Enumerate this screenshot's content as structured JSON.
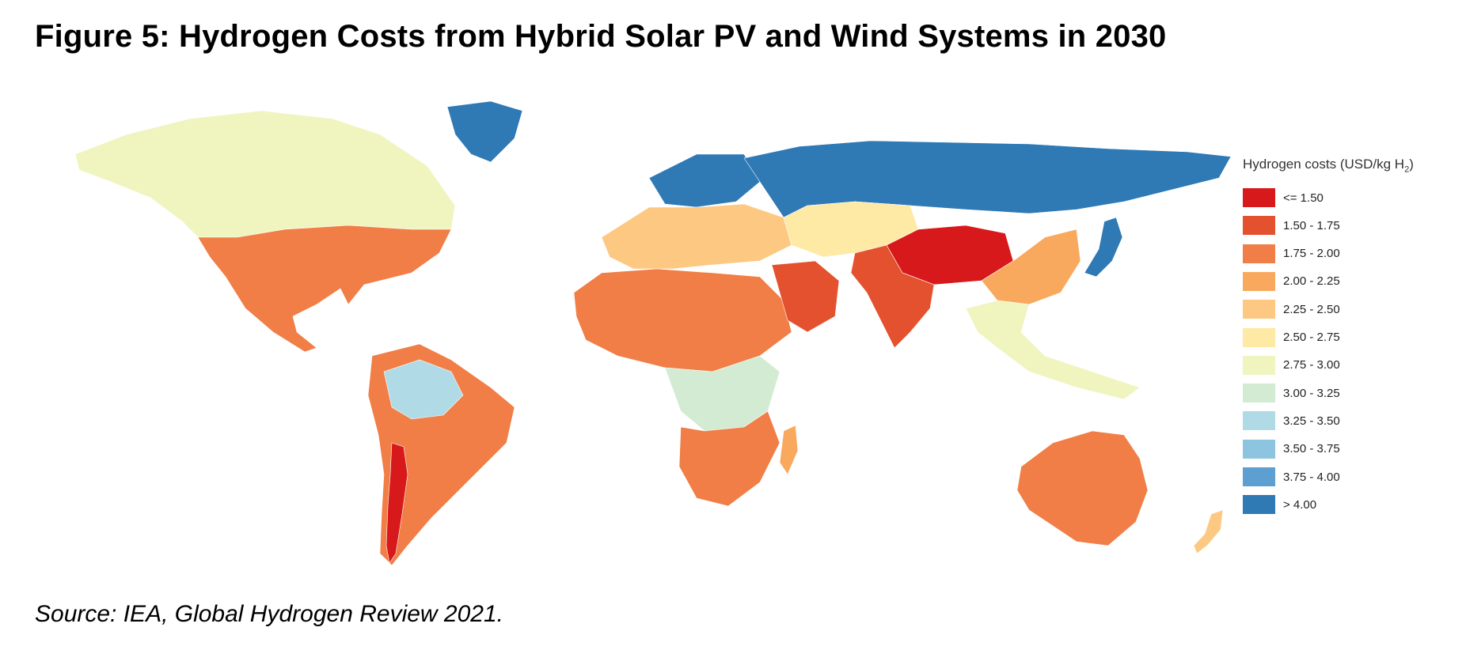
{
  "figure": {
    "title": "Figure 5: Hydrogen Costs from Hybrid Solar PV and Wind Systems in 2030",
    "source": "Source: IEA, Global Hydrogen Review 2021."
  },
  "legend": {
    "title_prefix": "Hydrogen costs (USD/kg H",
    "title_subscript": "2",
    "title_suffix": ")",
    "classes": [
      {
        "label": "<= 1.50",
        "color": "#d7191c"
      },
      {
        "label": "1.50 - 1.75",
        "color": "#e4512f"
      },
      {
        "label": "1.75 - 2.00",
        "color": "#f07e46"
      },
      {
        "label": "2.00 - 2.25",
        "color": "#f9a95e"
      },
      {
        "label": "2.25 - 2.50",
        "color": "#fdc982"
      },
      {
        "label": "2.50 - 2.75",
        "color": "#fee9a5"
      },
      {
        "label": "2.75 - 3.00",
        "color": "#f0f5c0"
      },
      {
        "label": "3.00 - 3.25",
        "color": "#d2ebd2"
      },
      {
        "label": "3.25 - 3.50",
        "color": "#b0dbe6"
      },
      {
        "label": "3.50 - 3.75",
        "color": "#8dc4e0"
      },
      {
        "label": "3.75 - 4.00",
        "color": "#5d9fd1"
      },
      {
        "label": "> 4.00",
        "color": "#2f79b5"
      }
    ]
  },
  "regions": [
    {
      "name": "North America (Canada/Alaska)",
      "cost_class": "2.75 - 3.00"
    },
    {
      "name": "United States & Mexico",
      "cost_class": "1.75 - 2.00"
    },
    {
      "name": "Greenland",
      "cost_class": "> 4.00"
    },
    {
      "name": "Andes / Chile",
      "cost_class": "<= 1.50"
    },
    {
      "name": "Amazon Basin",
      "cost_class": "3.25 - 3.50"
    },
    {
      "name": "South America (east)",
      "cost_class": "1.75 - 2.00"
    },
    {
      "name": "Northern Europe / Scandinavia",
      "cost_class": "> 4.00"
    },
    {
      "name": "Southern Europe",
      "cost_class": "2.25 - 2.50"
    },
    {
      "name": "Sahara / North Africa",
      "cost_class": "1.75 - 2.00"
    },
    {
      "name": "Central Africa",
      "cost_class": "3.00 - 3.25"
    },
    {
      "name": "Southern Africa",
      "cost_class": "1.75 - 2.00"
    },
    {
      "name": "Madagascar",
      "cost_class": "2.00 - 2.25"
    },
    {
      "name": "Arabian Peninsula",
      "cost_class": "1.50 - 1.75"
    },
    {
      "name": "Russia / Siberia",
      "cost_class": "> 4.00"
    },
    {
      "name": "Central Asia",
      "cost_class": "2.50 - 2.75"
    },
    {
      "name": "Tibet / Western China",
      "cost_class": "<= 1.50"
    },
    {
      "name": "India / Pakistan",
      "cost_class": "1.50 - 1.75"
    },
    {
      "name": "Eastern China",
      "cost_class": "2.00 - 2.25"
    },
    {
      "name": "Southeast Asia",
      "cost_class": "2.75 - 3.00"
    },
    {
      "name": "Japan",
      "cost_class": "> 4.00"
    },
    {
      "name": "Australia",
      "cost_class": "1.75 - 2.00"
    },
    {
      "name": "New Zealand",
      "cost_class": "2.25 - 2.50"
    }
  ]
}
